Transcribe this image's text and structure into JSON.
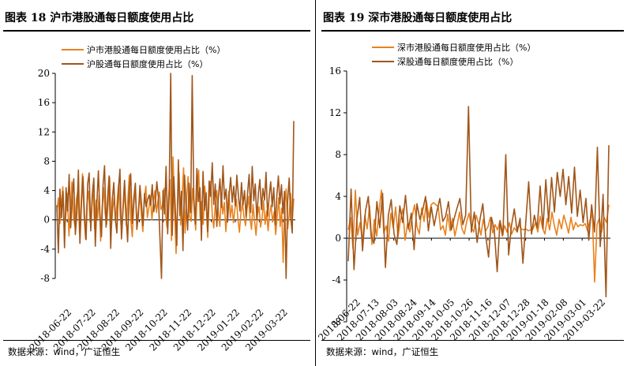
{
  "left": {
    "title": "图表 18 沪市港股通每日额度使用占比",
    "source": "数据来源：wind，广证恒生",
    "chart_data": {
      "type": "line",
      "title": "图表 18 沪市港股通每日额度使用占比",
      "xlabel": "",
      "ylabel": "",
      "ylim": [
        -8,
        20
      ],
      "yticks": [
        -8,
        -4,
        0,
        4,
        8,
        12,
        16,
        20
      ],
      "xticks": [
        "2018-06-22",
        "2018-07-22",
        "2018-08-22",
        "2018-09-22",
        "2018-10-22",
        "2018-11-22",
        "2018-12-22",
        "2019-01-22",
        "2019-02-22",
        "2019-03-22"
      ],
      "grid": false,
      "legend": "top",
      "colors": [
        "#E8821E",
        "#A0561A"
      ],
      "series": [
        {
          "name": "沪市港股通每日额度使用占比（%）",
          "values": [
            1.2,
            3.0,
            -0.5,
            2.1,
            4.5,
            -1.4,
            0.8,
            3.6,
            -2.2,
            1.5,
            5.2,
            0.4,
            -0.9,
            2.8,
            4.1,
            -1.8,
            1.9,
            6.3,
            0.6,
            -2.6,
            2.4,
            3.9,
            -0.3,
            1.1,
            4.8,
            -1.2,
            2.7,
            0.2,
            3.4,
            -2.9,
            1.6,
            4.4,
            0.9,
            -0.6,
            2.2,
            5.8,
            -1.5,
            1.4,
            3.1,
            -0.2,
            2.6,
            4.9,
            0.5,
            -1.9,
            1.8,
            3.7,
            -0.8,
            2.5,
            6.1,
            0.1,
            -2.3,
            2.0,
            4.2,
            -0.4,
            1.3,
            3.5,
            0.7,
            -1.6,
            2.9,
            4.6,
            0.3,
            1.7,
            3.3,
            0.0,
            2.3,
            4.0,
            1.0,
            2.6,
            3.8,
            1.4,
            2.0,
            4.3,
            0.8,
            -1.0,
            3.1,
            5.5,
            -2.8,
            8.6,
            1.5,
            -4.6,
            2.2,
            6.4,
            -0.7,
            3.0,
            7.1,
            -1.8,
            2.8,
            5.9,
            0.4,
            -0.2,
            4.3,
            1.6,
            -1.4,
            3.7,
            6.8,
            0.2,
            2.5,
            -0.6,
            4.6,
            1.9,
            -2.4,
            3.2,
            5.3,
            0.6,
            -1.1,
            2.1,
            4.0,
            1.2,
            -0.9,
            3.4,
            0.8,
            2.4,
            -1.6,
            1.1,
            3.9,
            0.3,
            2.0,
            -0.4,
            1.5,
            2.8,
            0.1,
            -1.7,
            1.0,
            2.3,
            0.5,
            -0.8,
            1.4,
            3.2,
            0.2,
            -1.3,
            2.1,
            -0.1,
            -2.1,
            0.7,
            1.8,
            -1.0,
            0.3,
            2.6,
            -0.6,
            1.2,
            -1.5,
            0.9,
            2.0,
            -0.3,
            1.1,
            -2.0,
            0.4,
            3.0,
            -0.9,
            1.6,
            -5.8,
            2.2,
            4.2,
            -1.2,
            0.8,
            3.6,
            0.0,
            2.9
          ]
        },
        {
          "name": "沪股通每日额度使用占比（%）",
          "values": [
            2.0,
            -4.5,
            4.2,
            0.3,
            3.9,
            -3.8,
            4.4,
            1.2,
            6.2,
            -1.1,
            3.1,
            5.6,
            -2.0,
            0.8,
            6.8,
            -3.2,
            2.4,
            5.9,
            0.4,
            -2.7,
            4.9,
            6.4,
            -1.5,
            3.3,
            5.7,
            -3.6,
            2.1,
            6.7,
            0.9,
            -2.3,
            4.6,
            7.4,
            -1.0,
            3.0,
            6.0,
            -3.9,
            2.6,
            5.1,
            0.2,
            -1.8,
            4.1,
            6.9,
            -2.6,
            1.7,
            5.4,
            0.7,
            -3.0,
            3.8,
            6.3,
            -0.5,
            2.9,
            5.0,
            -1.3,
            0.6,
            4.7,
            2.3,
            -0.8,
            3.6,
            1.8,
            2.7,
            3.4,
            2.0,
            4.8,
            1.1,
            2.4,
            5.2,
            3.0,
            -2.4,
            -8.0,
            4.0,
            0.8,
            7.3,
            -1.9,
            3.5,
            20.0,
            -2.1,
            5.9,
            1.5,
            -3.5,
            8.2,
            0.6,
            3.9,
            -4.2,
            6.1,
            2.2,
            -1.4,
            5.0,
            1.0,
            19.7,
            3.1,
            -0.6,
            7.0,
            2.5,
            4.4,
            -2.8,
            6.6,
            1.3,
            3.7,
            -1.6,
            5.3,
            3.2,
            7.8,
            2.1,
            4.9,
            -0.9,
            3.0,
            5.6,
            1.7,
            7.4,
            2.8,
            4.2,
            -0.3,
            3.5,
            5.8,
            2.4,
            4.6,
            1.9,
            6.1,
            3.3,
            1.2,
            5.1,
            2.0,
            4.0,
            0.4,
            3.8,
            6.2,
            1.0,
            7.3,
            2.6,
            4.9,
            0.1,
            3.6,
            5.5,
            1.4,
            4.3,
            2.7,
            6.5,
            0.5,
            3.1,
            5.2,
            1.8,
            4.4,
            -0.7,
            3.3,
            6.0,
            2.2,
            4.8,
            0.9,
            3.9,
            -8.0,
            2.5,
            5.7,
            0.3,
            -1.8,
            13.5
          ]
        }
      ]
    }
  },
  "right": {
    "title": "图表 19 深市港股通每日额度使用占比",
    "source": "数据来源：wind，广证恒生",
    "chart_data": {
      "type": "line",
      "title": "图表 19 深市港股通每日额度使用占比",
      "xlabel": "",
      "ylabel": "",
      "ylim": [
        -8,
        16
      ],
      "yticks": [
        -8,
        -4,
        0,
        4,
        8,
        12,
        16
      ],
      "xticks": [
        "2018-06-22",
        "2018-07-13",
        "2018-08-03",
        "2018-08-24",
        "2018-09-14",
        "2018-10-05",
        "2018-10-26",
        "2018-11-16",
        "2018-12-07",
        "2018-12-28",
        "2019-01-18",
        "2019-02-08",
        "2019-03-01",
        "2019-03-22"
      ],
      "grid": false,
      "legend": "top",
      "colors": [
        "#E8821E",
        "#A0561A"
      ],
      "series": [
        {
          "name": "深市港股通每日额度使用占比（%）",
          "values": [
            0.8,
            2.0,
            -1.0,
            4.6,
            0.3,
            1.5,
            -0.4,
            2.2,
            0.9,
            3.1,
            -0.6,
            1.8,
            0.2,
            2.6,
            4.6,
            0.5,
            1.2,
            -0.3,
            2.4,
            1.0,
            3.0,
            0.1,
            1.7,
            2.8,
            -0.2,
            1.4,
            0.6,
            2.1,
            3.2,
            1.1,
            0.4,
            2.9,
            1.6,
            3.6,
            2.0,
            3.2,
            3.4,
            3.2,
            3.0,
            0.8,
            1.2,
            0.3,
            2.3,
            0.7,
            1.9,
            0.2,
            1.3,
            2.5,
            0.9,
            0.4,
            1.6,
            2.4,
            1.0,
            0.6,
            2.2,
            1.4,
            0.3,
            1.8,
            0.7,
            1.1,
            2.0,
            0.5,
            1.3,
            0.8,
            1.6,
            0.2,
            1.2,
            0.6,
            1.5,
            0.4,
            1.0,
            0.7,
            1.3,
            0.9,
            0.8,
            0.9,
            0.7,
            0.8,
            0.9,
            1.5,
            0.6,
            2.1,
            1.0,
            0.4,
            1.9,
            0.8,
            2.5,
            1.2,
            0.3,
            1.8,
            0.9,
            2.2,
            1.4,
            0.5,
            2.0,
            0.8,
            1.5,
            1.1,
            1.3,
            1.2,
            1.4,
            0.7,
            1.7,
            2.4,
            -4.2,
            1.3,
            1.9,
            0.6,
            2.0,
            1.5,
            3.2
          ]
        },
        {
          "name": "深股通每日额度使用占比（%）",
          "values": [
            -2.2,
            4.7,
            -3.0,
            1.8,
            3.9,
            -1.2,
            2.6,
            4.0,
            0.2,
            -0.5,
            3.5,
            1.0,
            4.3,
            -2.8,
            2.2,
            3.7,
            0.4,
            -0.6,
            3.1,
            1.5,
            4.1,
            0.9,
            2.4,
            -1.1,
            3.3,
            1.8,
            2.7,
            4.0,
            0.7,
            3.0,
            1.2,
            2.6,
            3.8,
            1.6,
            2.1,
            3.5,
            0.8,
            1.9,
            2.9,
            3.8,
            1.3,
            2.2,
            12.6,
            0.6,
            2.5,
            -0.4,
            1.8,
            3.3,
            0.2,
            -1.8,
            2.0,
            0.8,
            -3.2,
            1.7,
            0.3,
            8.0,
            -1.6,
            1.2,
            2.8,
            0.6,
            1.9,
            -2.4,
            1.5,
            5.4,
            0.4,
            2.2,
            1.0,
            5.0,
            0.9,
            5.6,
            1.6,
            5.8,
            2.5,
            6.3,
            4.0,
            6.6,
            3.2,
            5.9,
            2.4,
            6.8,
            2.1,
            4.6,
            1.5,
            3.8,
            -0.2,
            3.2,
            0.6,
            8.7,
            -0.8,
            4.2,
            -5.6,
            8.9
          ]
        }
      ]
    }
  }
}
